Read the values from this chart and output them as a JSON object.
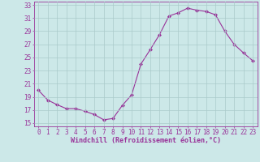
{
  "x": [
    0,
    1,
    2,
    3,
    4,
    5,
    6,
    7,
    8,
    9,
    10,
    11,
    12,
    13,
    14,
    15,
    16,
    17,
    18,
    19,
    20,
    21,
    22,
    23
  ],
  "y": [
    20.0,
    18.5,
    17.8,
    17.2,
    17.2,
    16.8,
    16.3,
    15.5,
    15.7,
    17.7,
    19.3,
    24.0,
    26.2,
    28.5,
    31.3,
    31.8,
    32.5,
    32.2,
    32.0,
    31.5,
    29.0,
    27.0,
    25.7,
    24.5
  ],
  "line_color": "#993399",
  "marker": "D",
  "marker_size": 2.0,
  "bg_color": "#cce8e8",
  "grid_color": "#aacaca",
  "xlabel": "Windchill (Refroidissement éolien,°C)",
  "tick_color": "#993399",
  "xlim": [
    -0.5,
    23.5
  ],
  "ylim": [
    14.5,
    33.5
  ],
  "yticks": [
    15,
    17,
    19,
    21,
    23,
    25,
    27,
    29,
    31,
    33
  ],
  "xticks": [
    0,
    1,
    2,
    3,
    4,
    5,
    6,
    7,
    8,
    9,
    10,
    11,
    12,
    13,
    14,
    15,
    16,
    17,
    18,
    19,
    20,
    21,
    22,
    23
  ],
  "spine_color": "#993399",
  "tick_fontsize": 5.5,
  "xlabel_fontsize": 6.0
}
